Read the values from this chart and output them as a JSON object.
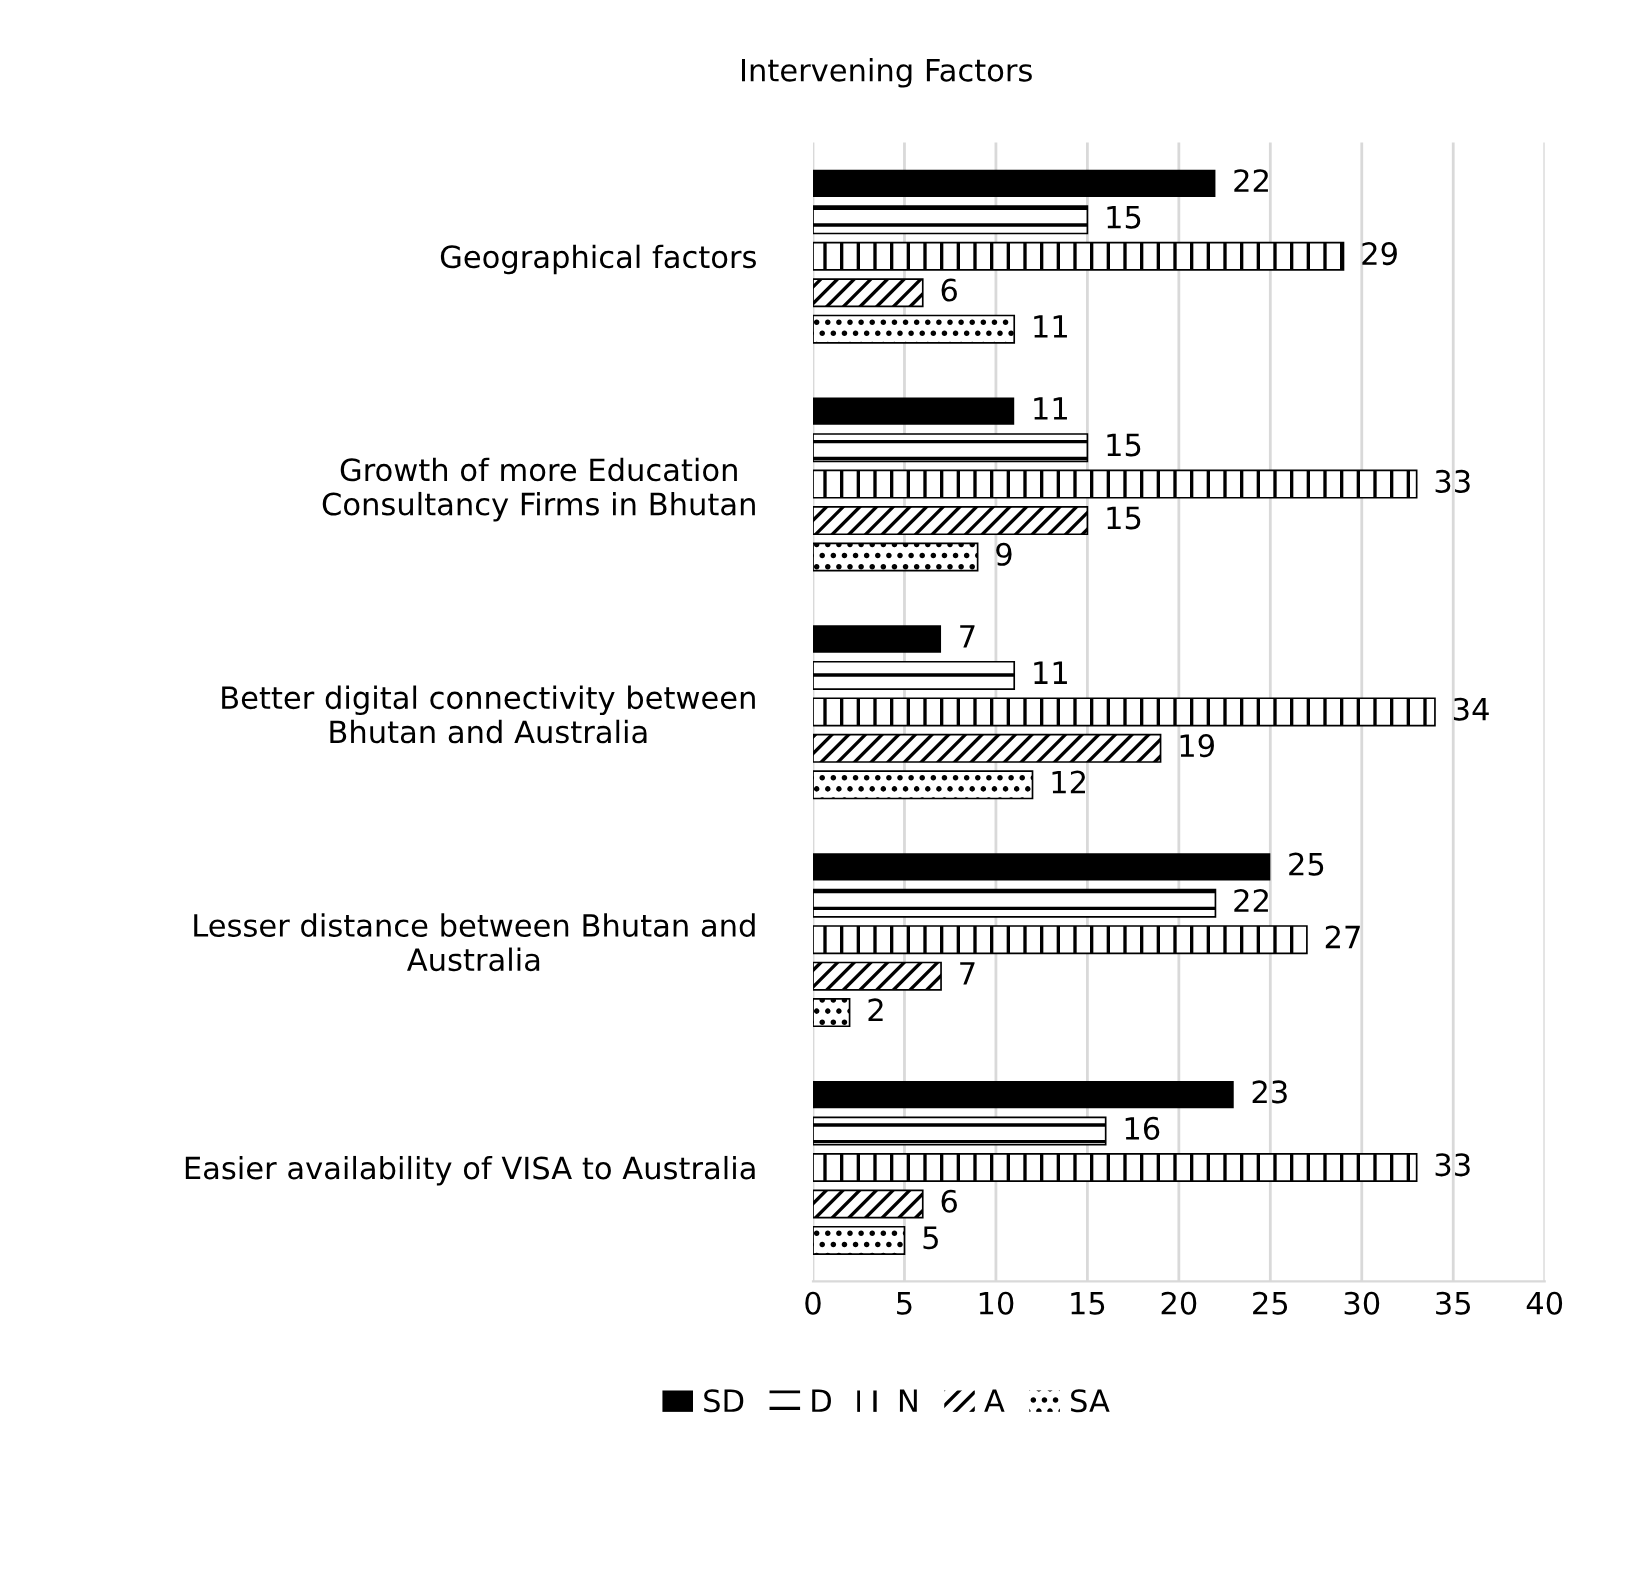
{
  "chart_data": {
    "type": "bar",
    "orientation": "horizontal",
    "title": "Intervening Factors",
    "categories": [
      "Geographical factors",
      "Growth of more Education\nConsultancy Firms in Bhutan",
      "Better digital connectivity between\nBhutan and Australia",
      "Lesser distance between Bhutan and\nAustralia",
      "Easier availability of VISA to Australia"
    ],
    "series": [
      {
        "name": "SD",
        "color": "#000000",
        "values": [
          22,
          11,
          7,
          25,
          23
        ]
      },
      {
        "name": "D",
        "color": "#000000",
        "values": [
          15,
          15,
          11,
          22,
          16
        ]
      },
      {
        "name": "N",
        "color": "#000000",
        "values": [
          29,
          33,
          34,
          27,
          33
        ]
      },
      {
        "name": "A",
        "color": "#000000",
        "values": [
          6,
          15,
          19,
          7,
          6
        ]
      },
      {
        "name": "SA",
        "color": "#000000",
        "values": [
          11,
          9,
          12,
          2,
          5
        ]
      }
    ],
    "xlim": [
      0,
      40
    ],
    "xticks": [
      0,
      5,
      10,
      15,
      20,
      25,
      30,
      35,
      40
    ],
    "grid": "x",
    "legend": "bottom",
    "data_labels": true
  }
}
